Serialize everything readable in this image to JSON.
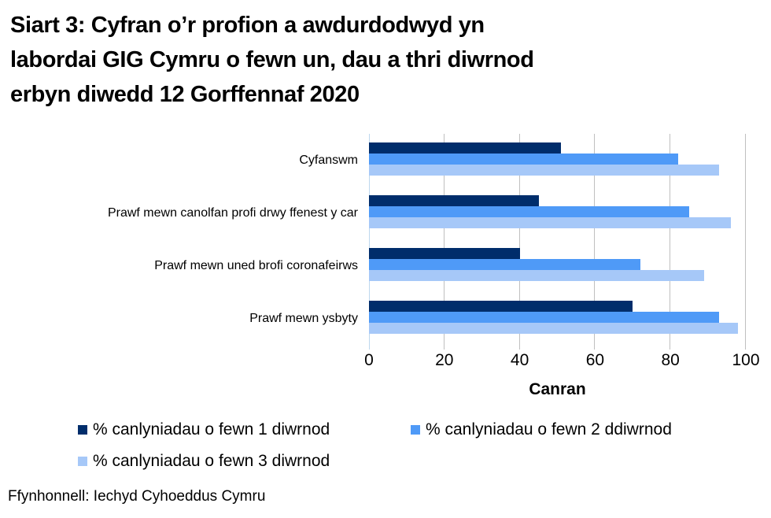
{
  "page": {
    "title_lines": [
      "Siart 3: Cyfran o’r profion a awdurdodwyd yn",
      "labordai GIG Cymru o fewn un, dau a thri diwrnod",
      "erbyn diwedd 12 Gorffennaf 2020"
    ],
    "source": "Ffynhonnell: Iechyd Cyhoeddus Cymru"
  },
  "chart_data": {
    "type": "bar",
    "orientation": "horizontal",
    "title": "Siart 3: Cyfran o’r profion a awdurdodwyd yn labordai GIG Cymru o fewn un, dau a thri diwrnod erbyn diwedd 12 Gorffennaf 2020",
    "categories": [
      "Cyfanswm",
      "Prawf mewn canolfan profi drwy ffenest y car",
      "Prawf mewn uned brofi coronafeirws",
      "Prawf mewn ysbyty"
    ],
    "series": [
      {
        "name": "% canlyniadau o fewn 1 diwrnod",
        "color": "#002D6B",
        "values": [
          51,
          45,
          40,
          70
        ]
      },
      {
        "name": "% canlyniadau o fewn 2 ddiwrnod",
        "color": "#4F9AF7",
        "values": [
          82,
          85,
          72,
          93
        ]
      },
      {
        "name": "% canlyniadau o fewn 3 diwrnod",
        "color": "#A6C8F8",
        "values": [
          93,
          96,
          89,
          98
        ]
      }
    ],
    "xlabel": "Canran",
    "xlim": [
      0,
      100
    ],
    "xticks": [
      0,
      20,
      40,
      60,
      80,
      100
    ],
    "grid": "vertical-gridlines",
    "legend_position": "bottom-left"
  },
  "colors": {
    "gridline": "#BFBFBF",
    "axis_line": "#BDD7EE",
    "text": "#000000",
    "background": "#FFFFFF"
  }
}
